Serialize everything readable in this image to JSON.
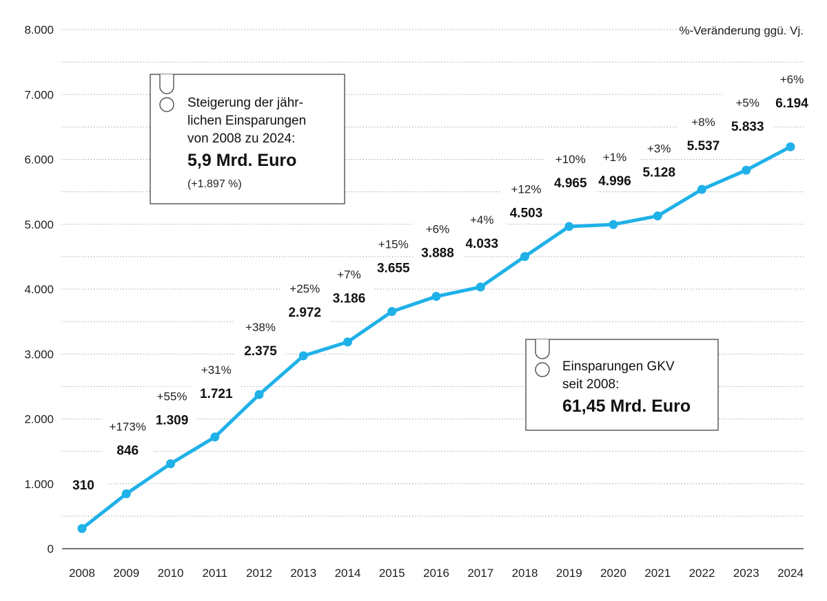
{
  "colors": {
    "line": "#1fb1e8",
    "grid": "#8a8a8a",
    "text": "#1e1e1e"
  },
  "unit_label": "%-Veränderung ggü. Vj.",
  "chart_data": {
    "type": "line",
    "x": [
      "2008",
      "2009",
      "2010",
      "2011",
      "2012",
      "2013",
      "2014",
      "2015",
      "2016",
      "2017",
      "2018",
      "2019",
      "2020",
      "2021",
      "2022",
      "2023",
      "2024"
    ],
    "values": [
      310,
      846,
      1309,
      1721,
      2375,
      2972,
      3186,
      3655,
      3888,
      4033,
      4503,
      4965,
      4996,
      5128,
      5537,
      5833,
      6194
    ],
    "value_labels": [
      "310",
      "846",
      "1.309",
      "1.721",
      "2.375",
      "2.972",
      "3.186",
      "3.655",
      "3.888",
      "4.033",
      "4.503",
      "4.965",
      "4.996",
      "5.128",
      "5.537",
      "5.833",
      "6.194"
    ],
    "change_labels": [
      "",
      "+173%",
      "+55%",
      "+31%",
      "+38%",
      "+25%",
      "+7%",
      "+15%",
      "+6%",
      "+4%",
      "+12%",
      "+10%",
      "+1%",
      "+3%",
      "+8%",
      "+5%",
      "+6%"
    ],
    "ylim": [
      0,
      8000
    ],
    "yticks": [
      0,
      1000,
      2000,
      3000,
      4000,
      5000,
      6000,
      7000,
      8000
    ],
    "ytick_labels": [
      "0",
      "1.000",
      "2.000",
      "3.000",
      "4.000",
      "5.000",
      "6.000",
      "7.000",
      "8.000"
    ],
    "grid": true
  },
  "box_increase": {
    "line1": "Steigerung der jähr-",
    "line2": "lichen Einsparungen",
    "line3": "von 2008 zu 2024:",
    "amount": "5,9 Mrd. Euro",
    "percent": "(+1.897 %)"
  },
  "box_total": {
    "line1": "Einsparungen GKV",
    "line2": "seit 2008:",
    "amount": "61,45 Mrd. Euro"
  }
}
